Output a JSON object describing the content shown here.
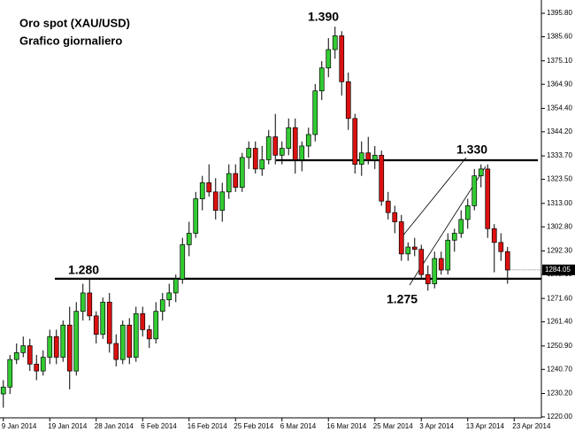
{
  "chart_data": {
    "type": "candlestick",
    "title": "Oro spot (XAU/USD)",
    "subtitle": "Grafico giornaliero",
    "open": [
      1230,
      1233,
      1245,
      1248,
      1251,
      1243,
      1240,
      1246,
      1255,
      1246,
      1260,
      1240,
      1266,
      1274,
      1264,
      1256,
      1270,
      1252,
      1245,
      1260,
      1246,
      1265,
      1258,
      1254,
      1266,
      1271,
      1274,
      1280,
      1295,
      1300,
      1315,
      1322,
      1318,
      1310,
      1318,
      1326,
      1320,
      1333,
      1337,
      1328,
      1332,
      1342,
      1334,
      1337,
      1346,
      1332,
      1338,
      1343,
      1362,
      1372,
      1380,
      1386,
      1366,
      1350,
      1330,
      1335,
      1332,
      1334,
      1314,
      1309,
      1305,
      1291,
      1294,
      1293,
      1282,
      1278,
      1289,
      1284,
      1297,
      1300,
      1306,
      1312,
      1325,
      1328,
      1302,
      1296,
      1292
    ],
    "high": [
      1236,
      1247,
      1252,
      1255,
      1254,
      1247,
      1249,
      1258,
      1258,
      1262,
      1268,
      1270,
      1278,
      1280,
      1266,
      1272,
      1274,
      1256,
      1262,
      1263,
      1268,
      1268,
      1260,
      1270,
      1274,
      1278,
      1282,
      1298,
      1305,
      1318,
      1325,
      1330,
      1324,
      1322,
      1330,
      1330,
      1335,
      1340,
      1340,
      1338,
      1345,
      1352,
      1340,
      1350,
      1350,
      1340,
      1346,
      1365,
      1375,
      1385,
      1390,
      1388,
      1370,
      1352,
      1340,
      1342,
      1338,
      1336,
      1318,
      1312,
      1308,
      1296,
      1298,
      1295,
      1286,
      1292,
      1292,
      1300,
      1302,
      1310,
      1315,
      1328,
      1330,
      1330,
      1304,
      1300,
      1294
    ],
    "low": [
      1224,
      1230,
      1243,
      1246,
      1240,
      1236,
      1238,
      1243,
      1243,
      1244,
      1232,
      1238,
      1262,
      1262,
      1252,
      1254,
      1248,
      1242,
      1243,
      1243,
      1244,
      1255,
      1250,
      1252,
      1262,
      1268,
      1270,
      1278,
      1290,
      1298,
      1310,
      1316,
      1306,
      1305,
      1315,
      1318,
      1318,
      1328,
      1326,
      1325,
      1330,
      1330,
      1330,
      1334,
      1326,
      1327,
      1333,
      1340,
      1358,
      1368,
      1376,
      1360,
      1345,
      1326,
      1325,
      1330,
      1328,
      1312,
      1306,
      1300,
      1288,
      1288,
      1290,
      1280,
      1275,
      1276,
      1282,
      1282,
      1292,
      1298,
      1302,
      1310,
      1320,
      1298,
      1283,
      1288,
      1278
    ],
    "close": [
      1233,
      1245,
      1248,
      1251,
      1243,
      1240,
      1246,
      1255,
      1246,
      1260,
      1240,
      1266,
      1274,
      1264,
      1256,
      1270,
      1252,
      1245,
      1260,
      1246,
      1265,
      1258,
      1254,
      1266,
      1271,
      1274,
      1280,
      1295,
      1300,
      1315,
      1322,
      1318,
      1310,
      1318,
      1326,
      1320,
      1333,
      1337,
      1328,
      1332,
      1342,
      1334,
      1337,
      1346,
      1332,
      1338,
      1343,
      1362,
      1372,
      1380,
      1386,
      1366,
      1350,
      1330,
      1335,
      1332,
      1334,
      1314,
      1309,
      1305,
      1291,
      1294,
      1293,
      1282,
      1278,
      1289,
      1284,
      1297,
      1300,
      1306,
      1312,
      1325,
      1328,
      1302,
      1296,
      1292,
      1284
    ],
    "up_color": "#33cc33",
    "down_color": "#dd1111",
    "xlim": [
      -0.5,
      81.1
    ],
    "xticks": [
      {
        "value": 0,
        "label": "9 Jan 2014"
      },
      {
        "value": 7,
        "label": "19 Jan 2014"
      },
      {
        "value": 14,
        "label": "28 Jan 2014"
      },
      {
        "value": 21,
        "label": "6 Feb 2014"
      },
      {
        "value": 28,
        "label": "16 Feb 2014"
      },
      {
        "value": 35,
        "label": "25 Feb 2014"
      },
      {
        "value": 42,
        "label": "6 Mar 2014"
      },
      {
        "value": 49,
        "label": "16 Mar 2014"
      },
      {
        "value": 56,
        "label": "25 Mar 2014"
      },
      {
        "value": 63,
        "label": "3 Apr 2014"
      },
      {
        "value": 70,
        "label": "13 Apr 2014"
      },
      {
        "value": 77,
        "label": "23 Apr 2014"
      }
    ],
    "ylim": [
      1219.6,
      1401.6
    ],
    "yticks": [
      {
        "value": 1395.8,
        "label": "1395.80"
      },
      {
        "value": 1385.6,
        "label": "1385.60"
      },
      {
        "value": 1375.1,
        "label": "1375.10"
      },
      {
        "value": 1364.9,
        "label": "1364.90"
      },
      {
        "value": 1354.4,
        "label": "1354.40"
      },
      {
        "value": 1344.2,
        "label": "1344.20"
      },
      {
        "value": 1333.7,
        "label": "1333.70"
      },
      {
        "value": 1323.5,
        "label": "1323.50"
      },
      {
        "value": 1313,
        "label": "1313.00"
      },
      {
        "value": 1302.8,
        "label": "1302.80"
      },
      {
        "value": 1292.3,
        "label": "1292.30"
      },
      {
        "value": 1282.1,
        "label": "1282.10"
      },
      {
        "value": 1271.6,
        "label": "1271.60"
      },
      {
        "value": 1261.4,
        "label": "1261.40"
      },
      {
        "value": 1250.9,
        "label": "1250.90"
      },
      {
        "value": 1240.7,
        "label": "1240.70"
      },
      {
        "value": 1230.2,
        "label": "1230.20"
      },
      {
        "value": 1220,
        "label": "1220.00"
      }
    ],
    "levels": [
      1280.2,
      1331.8
    ],
    "last_price": 1284.05,
    "annotations": [
      "1.390",
      "1.330",
      "1.280",
      "1.275"
    ]
  }
}
